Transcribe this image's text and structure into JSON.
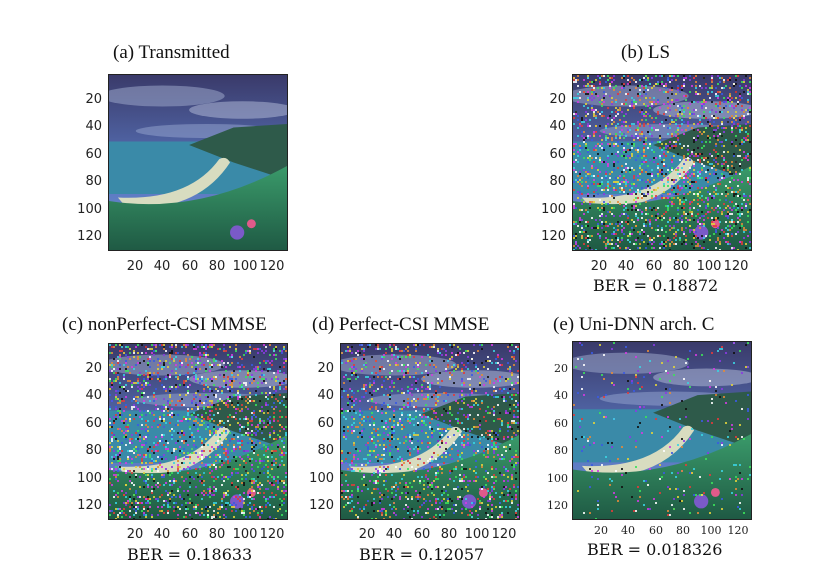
{
  "panels": [
    {
      "id": "a",
      "title": "(a) Transmitted",
      "ber": "",
      "noise": 0.0
    },
    {
      "id": "b",
      "title": "(b) LS",
      "ber": "BER = 0.18872",
      "noise": 0.55
    },
    {
      "id": "c",
      "title": "(c)  nonPerfect-CSI MMSE",
      "ber": "BER = 0.18633",
      "noise": 0.55
    },
    {
      "id": "d",
      "title": "(d) Perfect-CSI MMSE",
      "ber": "BER = 0.12057",
      "noise": 0.42
    },
    {
      "id": "e",
      "title": "(e) Uni-DNN arch. C",
      "ber": "BER = 0.018326",
      "noise": 0.08
    }
  ],
  "axes": {
    "y_ticks": [
      "20",
      "40",
      "60",
      "80",
      "100",
      "120"
    ],
    "x_ticks": [
      "20",
      "40",
      "60",
      "80",
      "100",
      "120"
    ]
  },
  "colors": {
    "sky_top": "#3a3a6a",
    "sky_mid": "#5a78c0",
    "cloud": "#9aa6c8",
    "sea": "#3a8aa8",
    "beach": "#d8dcc0",
    "cliff": "#2e5a4a",
    "grass": "#2a7a5a",
    "flower": "#7a5ac8"
  }
}
